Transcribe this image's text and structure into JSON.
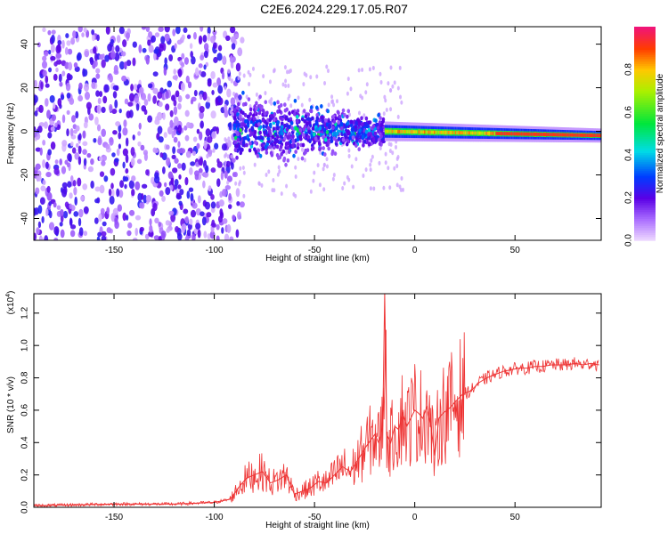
{
  "title": "C2E6.2024.229.17.05.R07",
  "chart_data": [
    {
      "type": "heatmap",
      "xlabel": "Height of straight line (km)",
      "ylabel": "Frequency (Hz)",
      "xlim": [
        -190,
        93
      ],
      "ylim": [
        -50,
        48
      ],
      "xticks": [
        -150,
        -100,
        -50,
        0,
        50
      ],
      "yticks": [
        -40,
        -20,
        0,
        20,
        40
      ],
      "colorbar": {
        "label": "Normalized spectral amplitude",
        "range": [
          0.0,
          1.0
        ],
        "ticks": [
          0.0,
          0.2,
          0.4,
          0.6,
          0.8
        ]
      },
      "regions": [
        {
          "x_range": [
            -190,
            -90
          ],
          "freq_spread": [
            -50,
            48
          ],
          "amplitude": 0.1
        },
        {
          "x_range": [
            -90,
            -15
          ],
          "freq_spread": [
            -15,
            15
          ],
          "amplitude": 0.3
        },
        {
          "x_range": [
            -15,
            93
          ],
          "freq_spread": [
            -4,
            4
          ],
          "amplitude": 0.8
        }
      ]
    },
    {
      "type": "line",
      "xlabel": "Height of straight line (km)",
      "ylabel": "SNR (10 * v/v)",
      "multiplier_label": "(x10",
      "multiplier_exp": "4",
      "xlim": [
        -190,
        93
      ],
      "ylim": [
        0,
        1.32
      ],
      "xticks": [
        -150,
        -100,
        -50,
        0,
        50
      ],
      "yticks": [
        "0.0",
        "0.2",
        "0.4",
        "0.6",
        "0.8",
        "1.0",
        "1.2"
      ],
      "color": "#ee3333",
      "series": [
        {
          "x": [
            -190,
            -150,
            -120,
            -100,
            -92,
            -88,
            -84,
            -80,
            -76,
            -72,
            -68,
            -64,
            -60,
            -56,
            -52,
            -48,
            -44,
            -40,
            -36,
            -32,
            -28,
            -24,
            -20,
            -18,
            -16,
            -15,
            -14,
            -12,
            -10,
            -8,
            -6,
            -4,
            -2,
            0,
            2,
            4,
            6,
            8,
            10,
            12,
            14,
            16,
            18,
            20,
            24,
            28,
            32,
            36,
            40,
            44,
            48,
            52,
            56,
            60,
            64,
            68,
            72,
            76,
            80,
            84,
            88,
            92
          ],
          "y": [
            0.01,
            0.02,
            0.02,
            0.03,
            0.05,
            0.12,
            0.18,
            0.2,
            0.22,
            0.15,
            0.17,
            0.2,
            0.08,
            0.1,
            0.12,
            0.16,
            0.15,
            0.2,
            0.25,
            0.22,
            0.3,
            0.38,
            0.45,
            0.4,
            0.5,
            1.32,
            0.45,
            0.4,
            0.5,
            0.48,
            0.58,
            0.5,
            0.55,
            0.6,
            0.58,
            0.55,
            0.62,
            0.5,
            0.32,
            0.55,
            0.58,
            0.6,
            0.62,
            0.65,
            0.7,
            0.72,
            0.77,
            0.8,
            0.82,
            0.84,
            0.85,
            0.86,
            0.86,
            0.87,
            0.87,
            0.88,
            0.88,
            0.88,
            0.89,
            0.88,
            0.89,
            0.88
          ]
        }
      ]
    }
  ]
}
